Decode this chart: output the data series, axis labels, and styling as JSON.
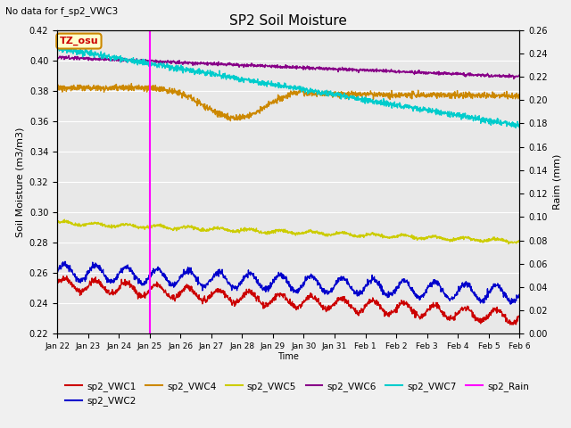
{
  "title": "SP2 Soil Moisture",
  "no_data_text": "No data for f_sp2_VWC3",
  "xlabel": "Time",
  "ylabel_left": "Soil Moisture (m3/m3)",
  "ylabel_right": "Raim (mm)",
  "tz_label": "TZ_osu",
  "ylim_left": [
    0.22,
    0.42
  ],
  "ylim_right": [
    0.0,
    0.26
  ],
  "yticks_left": [
    0.22,
    0.24,
    0.26,
    0.28,
    0.3,
    0.32,
    0.34,
    0.36,
    0.38,
    0.4,
    0.42
  ],
  "yticks_right": [
    0.0,
    0.02,
    0.04,
    0.06,
    0.08,
    0.1,
    0.12,
    0.14,
    0.16,
    0.18,
    0.2,
    0.22,
    0.24,
    0.26
  ],
  "xtick_labels": [
    "Jan 22",
    "Jan 23",
    "Jan 24",
    "Jan 25",
    "Jan 26",
    "Jan 27",
    "Jan 28",
    "Jan 29",
    "Jan 30",
    "Jan 31",
    "Feb 1",
    "Feb 2",
    "Feb 3",
    "Feb 4",
    "Feb 5",
    "Feb 6"
  ],
  "vline_x": 3.0,
  "vline_color": "#ff00ff",
  "background_color": "#e8e8e8",
  "fig_facecolor": "#f0f0f0",
  "grid_color": "#ffffff",
  "series": {
    "sp2_VWC1": {
      "color": "#cc0000",
      "label": "sp2_VWC1"
    },
    "sp2_VWC2": {
      "color": "#0000cc",
      "label": "sp2_VWC2"
    },
    "sp2_VWC4": {
      "color": "#cc8800",
      "label": "sp2_VWC4"
    },
    "sp2_VWC5": {
      "color": "#cccc00",
      "label": "sp2_VWC5"
    },
    "sp2_VWC6": {
      "color": "#880088",
      "label": "sp2_VWC6"
    },
    "sp2_VWC7": {
      "color": "#00cccc",
      "label": "sp2_VWC7"
    },
    "sp2_Rain": {
      "color": "#ff00ff",
      "label": "sp2_Rain"
    }
  }
}
